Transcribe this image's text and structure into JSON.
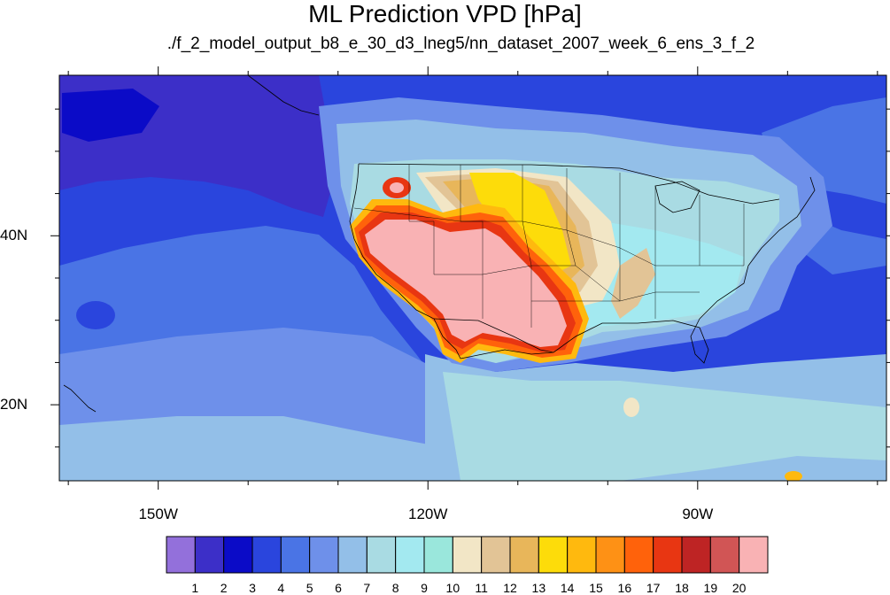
{
  "title": "ML Prediction VPD [hPa]",
  "subtitle": "./f_2_model_output_b8_e_30_d3_lneg5/nn_dataset_2007_week_6_ens_3_f_2",
  "map": {
    "lon_range": [
      -161,
      -69
    ],
    "lat_range": [
      11,
      59
    ],
    "lon_ticks": [
      {
        "value": -150,
        "label": "150W"
      },
      {
        "value": -120,
        "label": "120W"
      },
      {
        "value": -90,
        "label": "90W"
      }
    ],
    "lat_ticks": [
      {
        "value": 40,
        "label": "40N"
      },
      {
        "value": 20,
        "label": "20N"
      }
    ]
  },
  "colorbar": {
    "colors": [
      "#9370db",
      "#3c2fc8",
      "#0b0bc7",
      "#2a45dd",
      "#4a74e5",
      "#6e90ea",
      "#93bfe8",
      "#a9dbe3",
      "#a3e9f0",
      "#9ae7dc",
      "#f2e6c6",
      "#e2c496",
      "#e8b65a",
      "#fddc0a",
      "#ffb90e",
      "#fe9115",
      "#ff620b",
      "#e83612",
      "#be2424",
      "#d15555",
      "#f9b2b4"
    ],
    "labels": [
      "1",
      "2",
      "3",
      "4",
      "5",
      "6",
      "7",
      "8",
      "9",
      "10",
      "11",
      "12",
      "13",
      "14",
      "15",
      "16",
      "17",
      "18",
      "19",
      "20"
    ]
  }
}
